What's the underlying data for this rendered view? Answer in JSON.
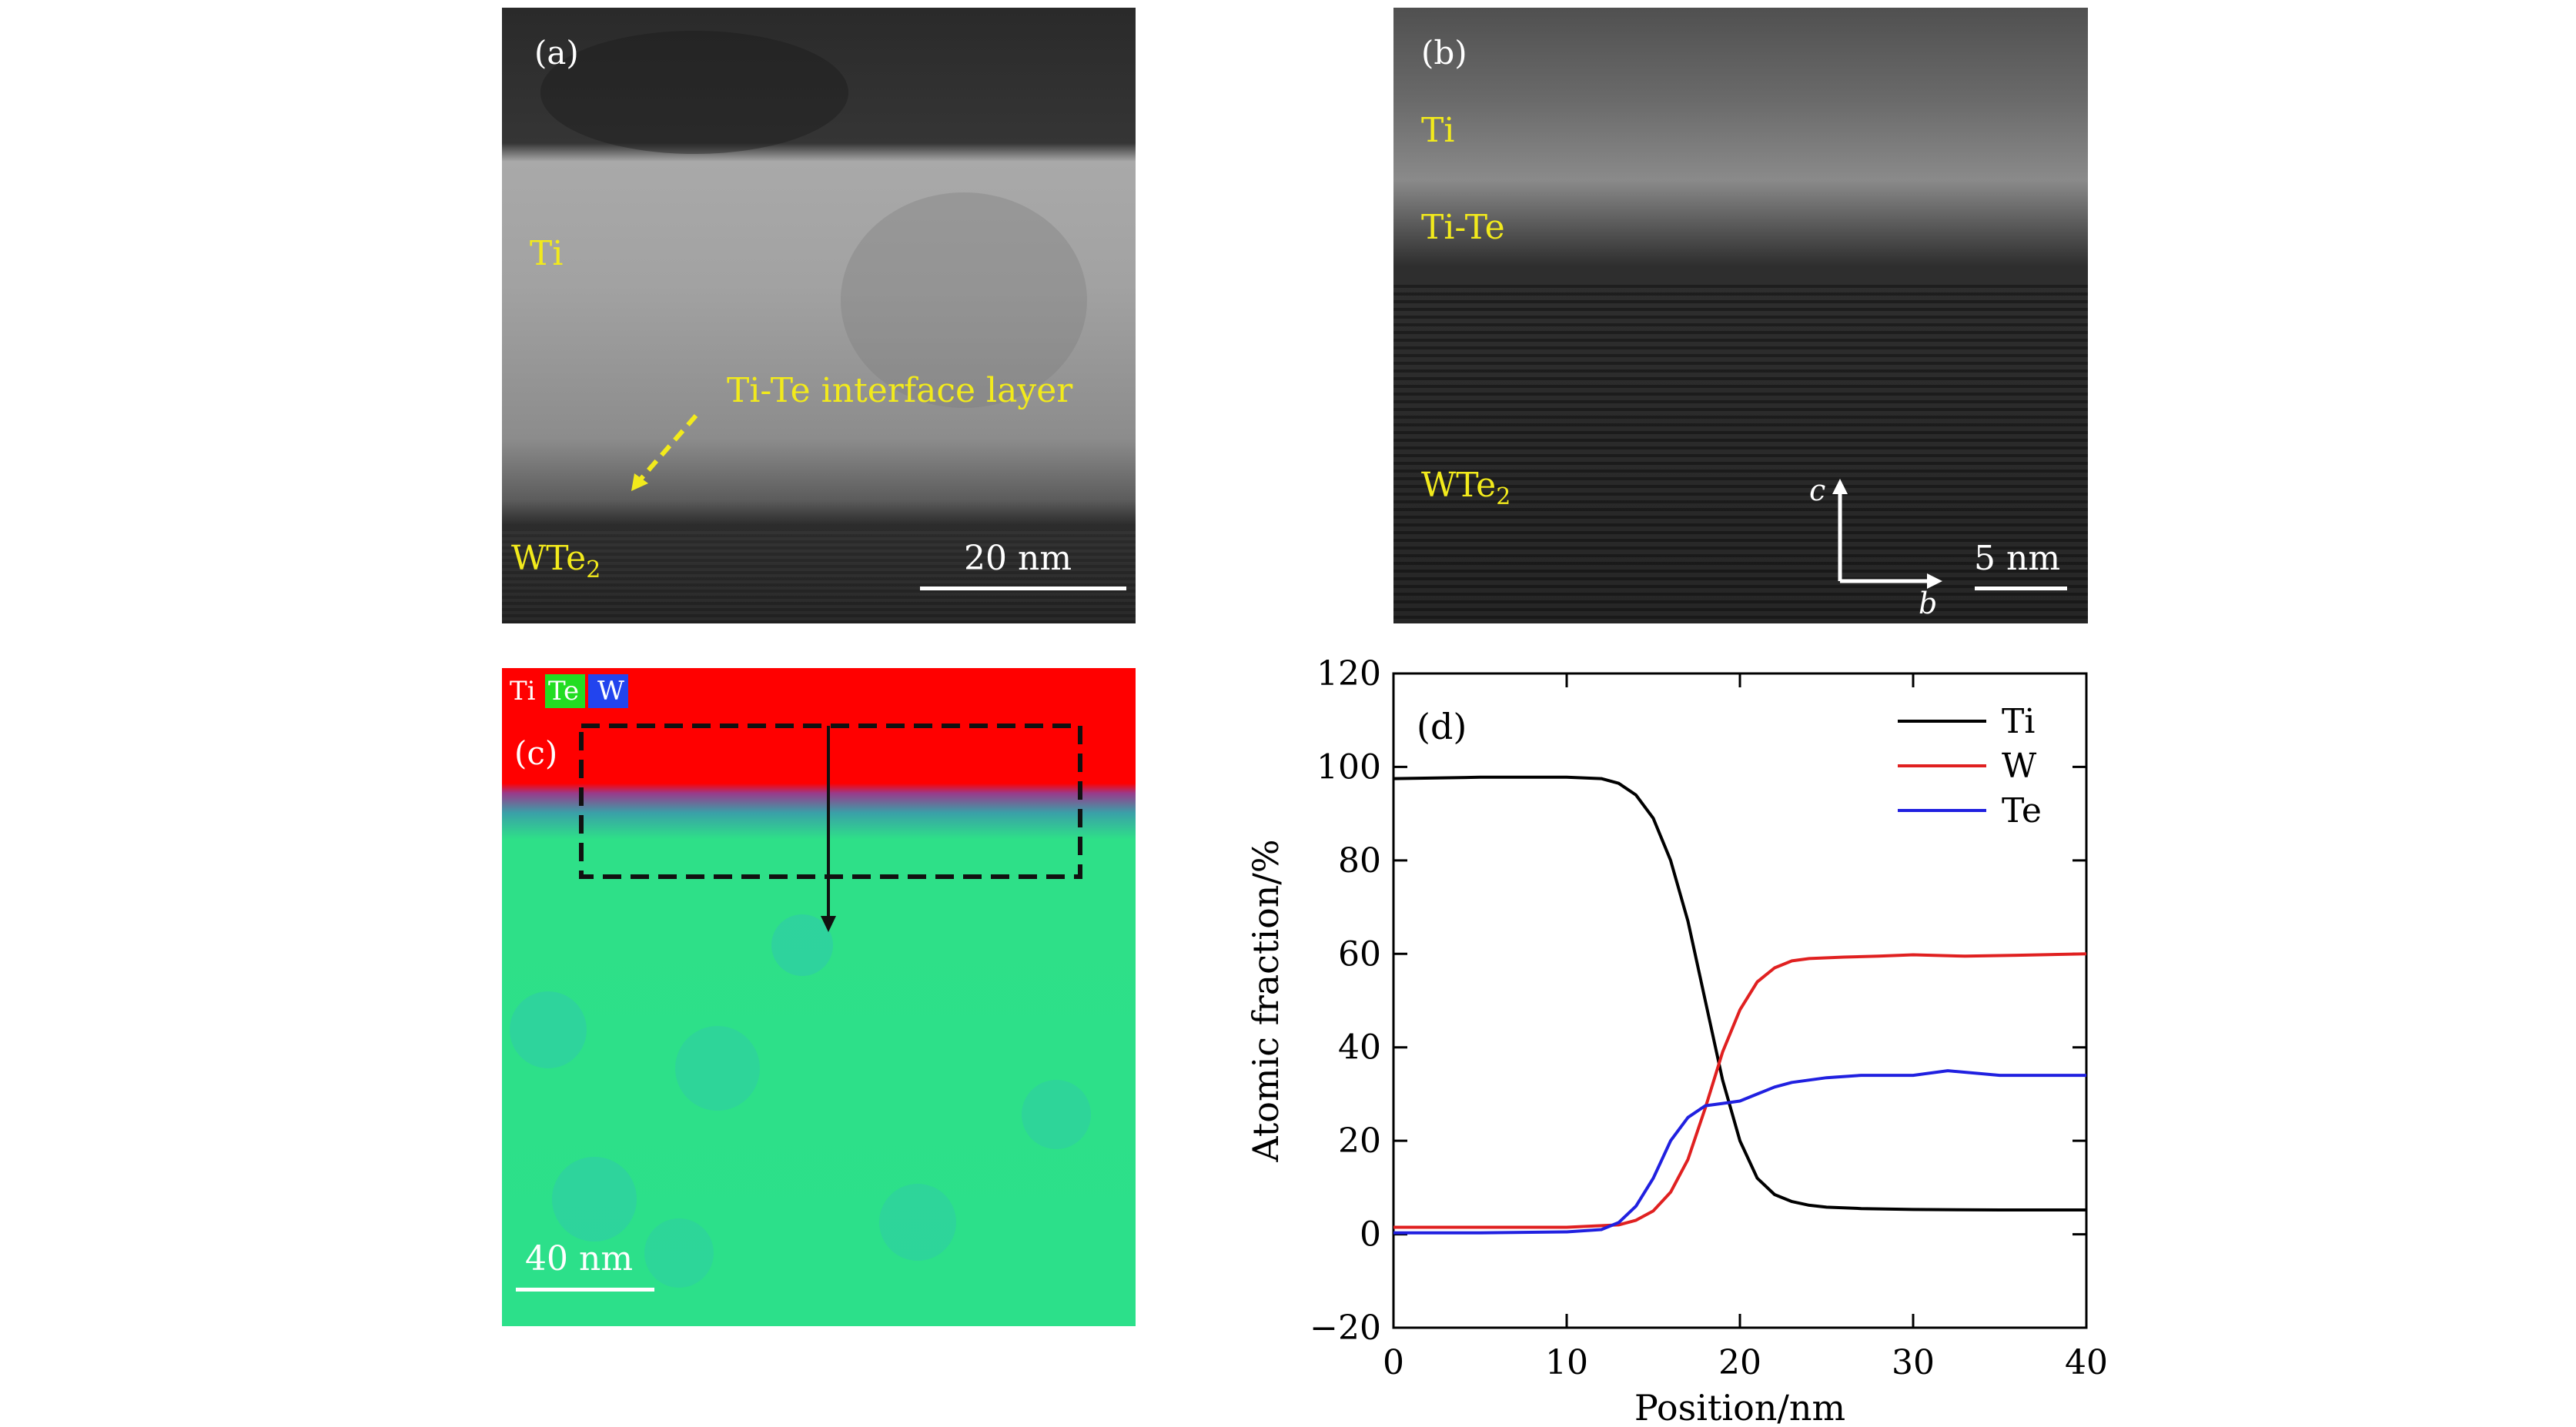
{
  "panel_a": {
    "label": "(a)",
    "ti_label": "Ti",
    "interface_label": "Ti-Te interface layer",
    "wte2_label": "WTe",
    "wte2_sub": "2",
    "scalebar": "20 nm"
  },
  "panel_b": {
    "label": "(b)",
    "ti_label": "Ti",
    "tite_label": "Ti-Te",
    "wte2_label": "WTe",
    "wte2_sub": "2",
    "axis_c": "c",
    "axis_b": "b",
    "scalebar": "5 nm"
  },
  "panel_c": {
    "label": "(c)",
    "legend": [
      "Ti",
      "Te",
      "W"
    ],
    "scalebar": "40 nm",
    "colors": {
      "ti": "#ff0000",
      "te": "#22e070",
      "w": "#2222dd"
    }
  },
  "chart_data": {
    "type": "line",
    "panel_label": "(d)",
    "xlabel": "Position/nm",
    "ylabel": "Atomic fraction/%",
    "xlim": [
      0,
      40
    ],
    "ylim": [
      -20,
      120
    ],
    "xticks": [
      0,
      10,
      20,
      30,
      40
    ],
    "yticks": [
      -20,
      0,
      20,
      40,
      60,
      80,
      100,
      120
    ],
    "grid": false,
    "legend_position": "top-right",
    "series": [
      {
        "name": "Ti",
        "color": "#000000",
        "x": [
          0,
          5,
          10,
          12,
          13,
          14,
          15,
          16,
          17,
          18,
          19,
          20,
          21,
          22,
          23,
          24,
          25,
          27,
          30,
          35,
          40
        ],
        "y": [
          97.5,
          97.8,
          97.8,
          97.5,
          96.5,
          94,
          89,
          80,
          67,
          50,
          33,
          20,
          12,
          8.5,
          7,
          6.2,
          5.8,
          5.5,
          5.3,
          5.2,
          5.2
        ]
      },
      {
        "name": "W",
        "color": "#e02020",
        "x": [
          0,
          5,
          10,
          13,
          14,
          15,
          16,
          17,
          18,
          19,
          20,
          21,
          22,
          23,
          24,
          26,
          28,
          30,
          33,
          36,
          40
        ],
        "y": [
          1.5,
          1.5,
          1.5,
          2,
          3,
          5,
          9,
          16,
          27,
          39,
          48,
          54,
          57,
          58.5,
          59,
          59.3,
          59.5,
          59.8,
          59.5,
          59.7,
          60
        ]
      },
      {
        "name": "Te",
        "color": "#2020e0",
        "x": [
          0,
          5,
          10,
          12,
          13,
          14,
          15,
          16,
          17,
          18,
          19,
          20,
          21,
          22,
          23,
          25,
          27,
          30,
          32,
          35,
          38,
          40
        ],
        "y": [
          0.3,
          0.3,
          0.5,
          1,
          2.5,
          6,
          12,
          20,
          25,
          27.5,
          28,
          28.5,
          30,
          31.5,
          32.5,
          33.5,
          34,
          34,
          35,
          34,
          34,
          34
        ]
      }
    ]
  }
}
